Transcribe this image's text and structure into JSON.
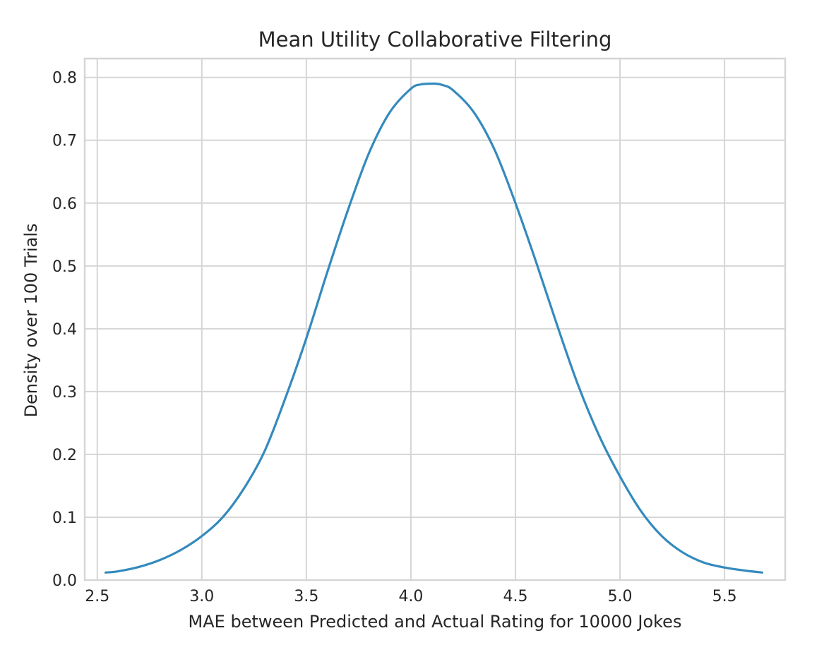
{
  "chart_data": {
    "type": "line",
    "title": "Mean Utility Collaborative Filtering",
    "xlabel": "MAE between Predicted and Actual Rating for 10000 Jokes",
    "ylabel": "Density over 100 Trials",
    "xlim": [
      2.44,
      5.79
    ],
    "ylim": [
      0.0,
      0.83
    ],
    "xticks": [
      "2.5",
      "3.0",
      "3.5",
      "4.0",
      "4.5",
      "5.0",
      "5.5"
    ],
    "yticks": [
      "0.0",
      "0.1",
      "0.2",
      "0.3",
      "0.4",
      "0.5",
      "0.6",
      "0.7",
      "0.8"
    ],
    "grid": true,
    "series": [
      {
        "color": "#348abd",
        "x": [
          2.54,
          2.6,
          2.7,
          2.8,
          2.9,
          3.0,
          3.1,
          3.2,
          3.3,
          3.4,
          3.5,
          3.6,
          3.7,
          3.8,
          3.9,
          4.0,
          4.05,
          4.1,
          4.12,
          4.15,
          4.2,
          4.3,
          4.4,
          4.5,
          4.6,
          4.7,
          4.8,
          4.9,
          5.0,
          5.1,
          5.2,
          5.3,
          5.4,
          5.5,
          5.6,
          5.68
        ],
        "y": [
          0.012,
          0.014,
          0.021,
          0.032,
          0.048,
          0.07,
          0.1,
          0.145,
          0.205,
          0.29,
          0.385,
          0.49,
          0.59,
          0.68,
          0.745,
          0.782,
          0.789,
          0.79,
          0.79,
          0.788,
          0.78,
          0.745,
          0.685,
          0.6,
          0.505,
          0.405,
          0.31,
          0.23,
          0.165,
          0.11,
          0.07,
          0.044,
          0.028,
          0.02,
          0.015,
          0.012
        ]
      }
    ]
  }
}
